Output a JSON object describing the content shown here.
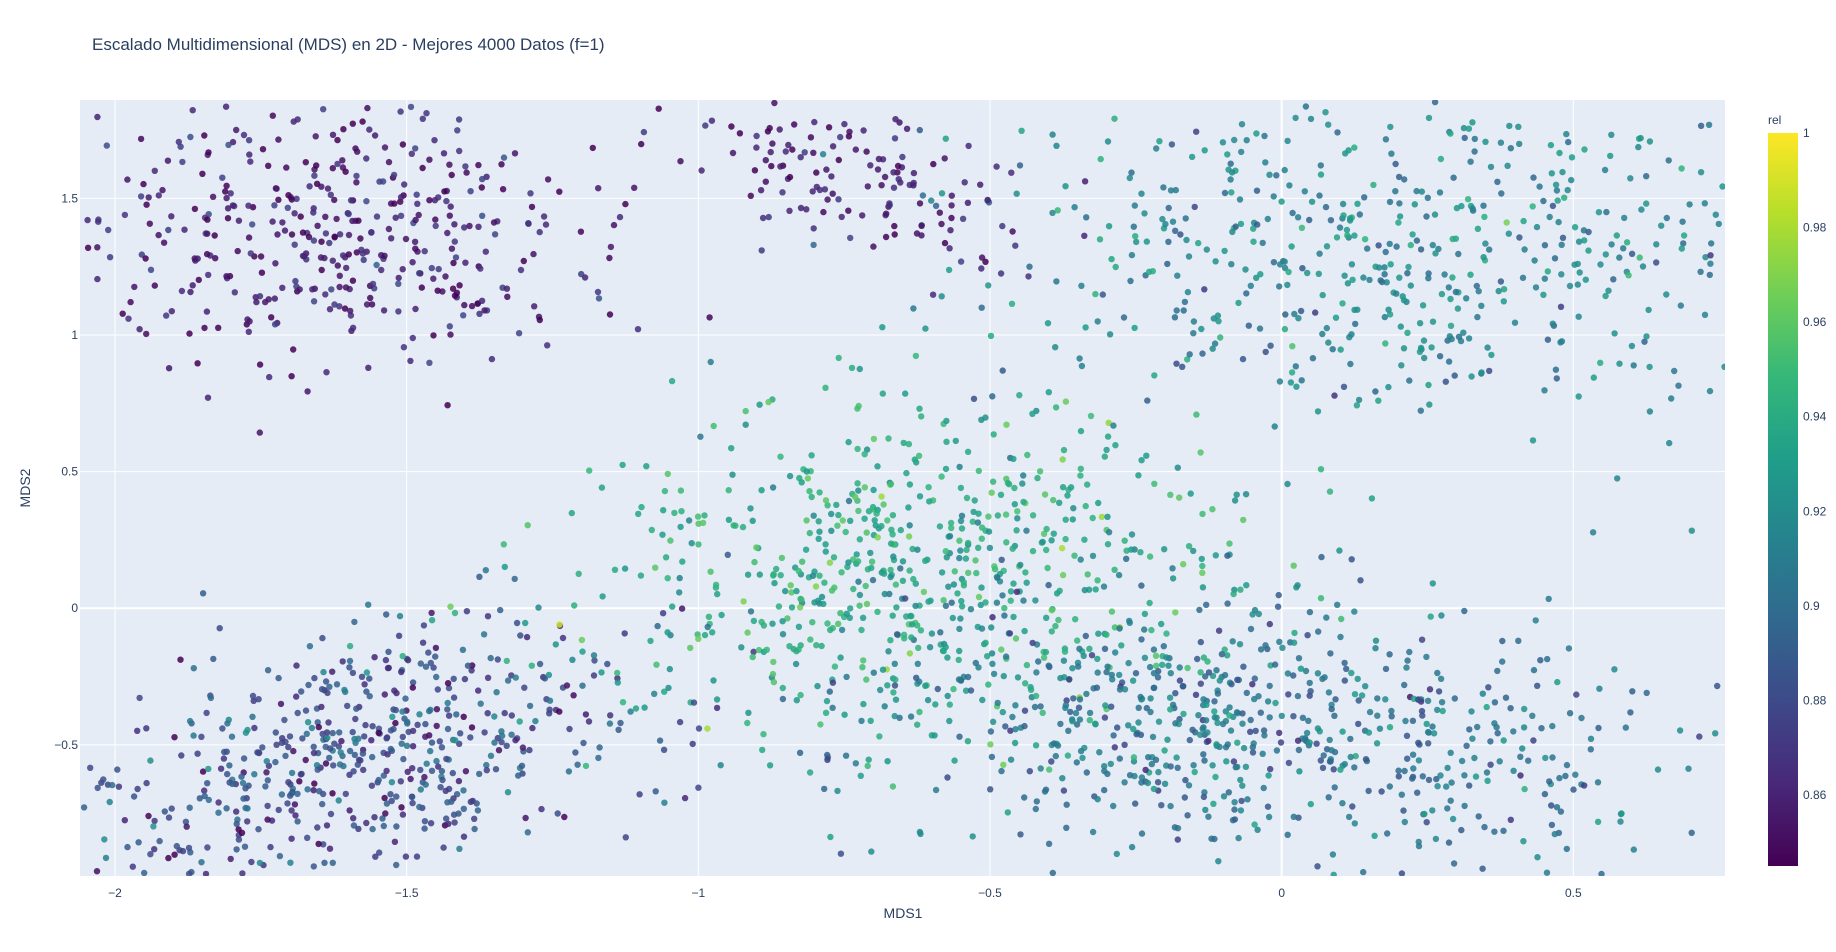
{
  "chart_data": {
    "type": "scatter",
    "title": "Escalado Multidimensional (MDS) en 2D - Mejores 4000 Datos (f=1)",
    "xlabel": "MDS1",
    "ylabel": "MDS2",
    "xlim": [
      -2.06,
      0.76
    ],
    "ylim": [
      -0.98,
      1.86
    ],
    "x_ticks": [
      {
        "value": -2,
        "label": "−2"
      },
      {
        "value": -1.5,
        "label": "−1.5"
      },
      {
        "value": -1,
        "label": "−1"
      },
      {
        "value": -0.5,
        "label": "−0.5"
      },
      {
        "value": 0,
        "label": "0"
      },
      {
        "value": 0.5,
        "label": "0.5"
      }
    ],
    "y_ticks": [
      {
        "value": -0.5,
        "label": "−0.5"
      },
      {
        "value": 0,
        "label": "0"
      },
      {
        "value": 0.5,
        "label": "0.5"
      },
      {
        "value": 1,
        "label": "1"
      },
      {
        "value": 1.5,
        "label": "1.5"
      }
    ],
    "grid": true,
    "plot_background": "#e5ecf6",
    "colorscale": "Viridis",
    "colorbar": {
      "title": "rel",
      "range": [
        0.845,
        1.0
      ],
      "ticks": [
        {
          "value": 0.86,
          "label": "0.86"
        },
        {
          "value": 0.88,
          "label": "0.88"
        },
        {
          "value": 0.9,
          "label": "0.9"
        },
        {
          "value": 0.92,
          "label": "0.92"
        },
        {
          "value": 0.94,
          "label": "0.94"
        },
        {
          "value": 0.96,
          "label": "0.96"
        },
        {
          "value": 0.98,
          "label": "0.98"
        },
        {
          "value": 1,
          "label": "1"
        }
      ]
    },
    "marker_opacity": 0.85,
    "point_count_approx": 3100,
    "clusters": [
      {
        "cx": -1.62,
        "cy": 1.38,
        "sx": 0.23,
        "sy": 0.25,
        "rot": 0.62,
        "n": 440,
        "rel_mean": 0.858,
        "rel_sd": 0.012
      },
      {
        "cx": -1.57,
        "cy": -0.55,
        "sx": 0.32,
        "sy": 0.19,
        "rot": 0.85,
        "n": 620,
        "rel_mean": 0.882,
        "rel_sd": 0.018
      },
      {
        "cx": -0.62,
        "cy": 0.15,
        "sx": 0.28,
        "sy": 0.33,
        "rot": -0.3,
        "n": 700,
        "rel_mean": 0.938,
        "rel_sd": 0.014
      },
      {
        "cx": -0.05,
        "cy": -0.45,
        "sx": 0.36,
        "sy": 0.24,
        "rot": -0.35,
        "n": 750,
        "rel_mean": 0.905,
        "rel_sd": 0.016
      },
      {
        "cx": 0.22,
        "cy": 1.3,
        "sx": 0.36,
        "sy": 0.3,
        "rot": -0.4,
        "n": 600,
        "rel_mean": 0.915,
        "rel_sd": 0.016
      },
      {
        "cx": -0.72,
        "cy": 1.55,
        "sx": 0.1,
        "sy": 0.2,
        "rot": 0.8,
        "n": 140,
        "rel_mean": 0.857,
        "rel_sd": 0.01
      }
    ]
  }
}
